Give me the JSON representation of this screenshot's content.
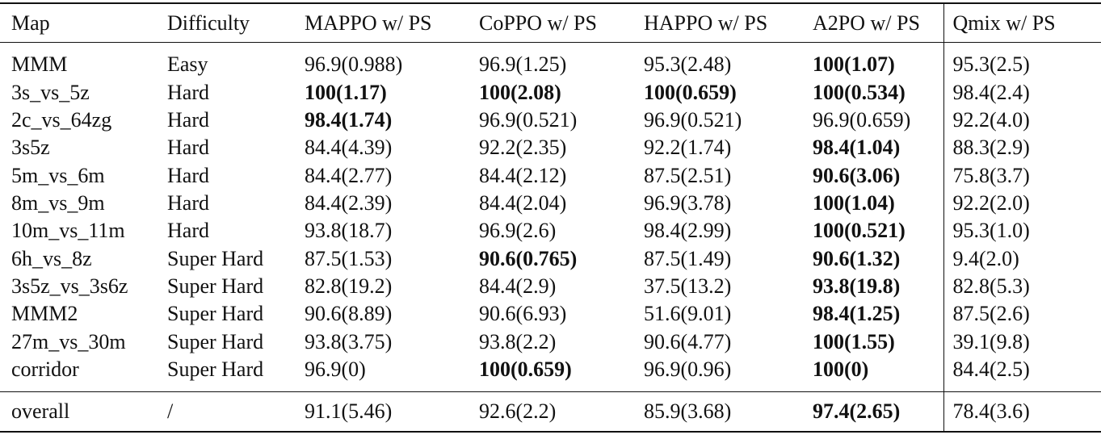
{
  "table": {
    "header": [
      "Map",
      "Difficulty",
      "MAPPO w/ PS",
      "CoPPO w/ PS",
      "HAPPO w/ PS",
      "A2PO w/ PS",
      "Qmix w/ PS"
    ],
    "rows": [
      [
        "MMM",
        "Easy",
        "96.9(0.988)",
        "96.9(1.25)",
        "95.3(2.48)",
        "100(1.07)",
        "95.3(2.5)"
      ],
      [
        "3s_vs_5z",
        "Hard",
        "100(1.17)",
        "100(2.08)",
        "100(0.659)",
        "100(0.534)",
        "98.4(2.4)"
      ],
      [
        "2c_vs_64zg",
        "Hard",
        "98.4(1.74)",
        "96.9(0.521)",
        "96.9(0.521)",
        "96.9(0.659)",
        "92.2(4.0)"
      ],
      [
        "3s5z",
        "Hard",
        "84.4(4.39)",
        "92.2(2.35)",
        "92.2(1.74)",
        "98.4(1.04)",
        "88.3(2.9)"
      ],
      [
        "5m_vs_6m",
        "Hard",
        "84.4(2.77)",
        "84.4(2.12)",
        "87.5(2.51)",
        "90.6(3.06)",
        "75.8(3.7)"
      ],
      [
        "8m_vs_9m",
        "Hard",
        "84.4(2.39)",
        "84.4(2.04)",
        "96.9(3.78)",
        "100(1.04)",
        "92.2(2.0)"
      ],
      [
        "10m_vs_11m",
        "Hard",
        "93.8(18.7)",
        "96.9(2.6)",
        "98.4(2.99)",
        "100(0.521)",
        "95.3(1.0)"
      ],
      [
        "6h_vs_8z",
        "Super Hard",
        "87.5(1.53)",
        "90.6(0.765)",
        "87.5(1.49)",
        "90.6(1.32)",
        "9.4(2.0)"
      ],
      [
        "3s5z_vs_3s6z",
        "Super Hard",
        "82.8(19.2)",
        "84.4(2.9)",
        "37.5(13.2)",
        "93.8(19.8)",
        "82.8(5.3)"
      ],
      [
        "MMM2",
        "Super Hard",
        "90.6(8.89)",
        "90.6(6.93)",
        "51.6(9.01)",
        "98.4(1.25)",
        "87.5(2.6)"
      ],
      [
        "27m_vs_30m",
        "Super Hard",
        "93.8(3.75)",
        "93.8(2.2)",
        "90.6(4.77)",
        "100(1.55)",
        "39.1(9.8)"
      ],
      [
        "corridor",
        "Super Hard",
        "96.9(0)",
        "100(0.659)",
        "96.9(0.96)",
        "100(0)",
        "84.4(2.5)"
      ]
    ],
    "overall": [
      "overall",
      "/",
      "91.1(5.46)",
      "92.6(2.2)",
      "85.9(3.68)",
      "97.4(2.65)",
      "78.4(3.6)"
    ]
  }
}
